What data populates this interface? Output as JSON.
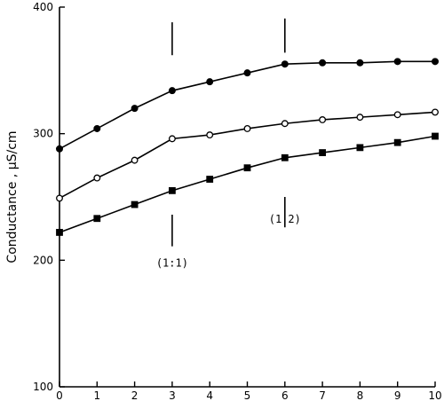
{
  "chart_data": {
    "type": "line",
    "ylabel": "Conductance , µS/cm",
    "xlim": [
      0,
      10
    ],
    "ylim": [
      100,
      400
    ],
    "x_ticks": [
      "0",
      "1",
      "2",
      "3",
      "4",
      "5",
      "6",
      "7",
      "8",
      "9",
      "10"
    ],
    "y_ticks": [
      "100",
      "200",
      "300",
      "400"
    ],
    "x_tick_values": [
      0,
      1,
      2,
      3,
      4,
      5,
      6,
      7,
      8,
      9,
      10
    ],
    "y_tick_values": [
      100,
      200,
      300,
      400
    ],
    "x": [
      0,
      1,
      2,
      3,
      4,
      5,
      6,
      7,
      8,
      9,
      10
    ],
    "series": [
      {
        "marker": "filled-circle",
        "values": [
          288,
          304,
          320,
          334,
          341,
          348,
          355,
          356,
          356,
          357,
          357
        ]
      },
      {
        "marker": "open-circle",
        "values": [
          249,
          265,
          279,
          296,
          299,
          304,
          308,
          311,
          313,
          315,
          317
        ]
      },
      {
        "marker": "filled-square",
        "values": [
          222,
          233,
          244,
          255,
          264,
          273,
          281,
          285,
          289,
          293,
          298
        ]
      }
    ],
    "annotations": [
      {
        "x": 3,
        "label": "(1:1)",
        "upper_mark": [
          362,
          388
        ],
        "lower_mark": [
          236,
          211
        ]
      },
      {
        "x": 6,
        "label": "(1:2)",
        "upper_mark": [
          364,
          391
        ],
        "lower_mark": [
          250,
          226
        ]
      }
    ],
    "grid": false
  }
}
